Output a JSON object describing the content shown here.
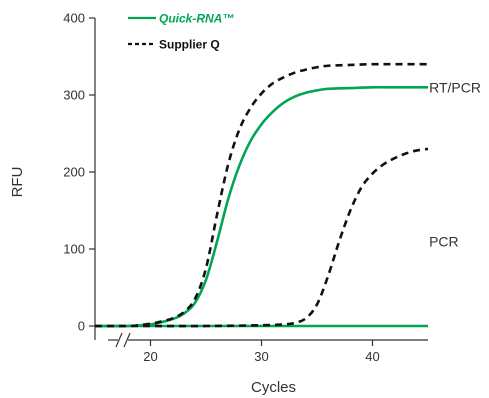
{
  "chart_data": {
    "type": "line",
    "title": "",
    "xlabel": "Cycles",
    "ylabel": "RFU",
    "xlim": [
      15,
      45
    ],
    "ylim": [
      0,
      400
    ],
    "x_ticks": [
      20,
      30,
      40
    ],
    "y_ticks": [
      0,
      100,
      200,
      300,
      400
    ],
    "axis_break": true,
    "grid": false,
    "legend": {
      "placement": "top-left",
      "entries": [
        {
          "label": "Quick-RNA™",
          "color": "#00A651",
          "style": "solid"
        },
        {
          "label": "Supplier Q",
          "color": "#111111",
          "style": "dashed"
        }
      ]
    },
    "annotations": [
      {
        "text": "RT/PCR",
        "x": 46,
        "y": 310
      },
      {
        "text": "PCR",
        "x": 46,
        "y": 110
      }
    ],
    "series": [
      {
        "name": "Quick-RNA™",
        "group": "RT/PCR",
        "color": "#00A651",
        "style": "solid",
        "x": [
          15,
          18,
          20,
          21,
          22,
          23,
          24,
          25,
          26,
          27,
          28,
          29,
          30,
          31,
          32,
          33,
          34,
          35,
          36,
          38,
          40,
          42,
          45
        ],
        "y": [
          0,
          0,
          2,
          5,
          9,
          16,
          30,
          60,
          110,
          165,
          208,
          240,
          262,
          278,
          290,
          298,
          303,
          306,
          308,
          309,
          310,
          310,
          310
        ]
      },
      {
        "name": "Supplier Q",
        "group": "RT/PCR",
        "color": "#111111",
        "style": "dashed",
        "x": [
          15,
          18,
          20,
          21,
          22,
          23,
          24,
          25,
          26,
          27,
          28,
          29,
          30,
          31,
          32,
          33,
          34,
          35,
          36,
          38,
          40,
          42,
          45
        ],
        "y": [
          0,
          0,
          3,
          6,
          10,
          18,
          35,
          75,
          145,
          210,
          255,
          283,
          302,
          315,
          323,
          329,
          333,
          336,
          338,
          339,
          340,
          340,
          340
        ]
      },
      {
        "name": "Quick-RNA™",
        "group": "PCR",
        "color": "#00A651",
        "style": "solid",
        "x": [
          15,
          20,
          25,
          30,
          35,
          40,
          45
        ],
        "y": [
          0,
          0,
          0,
          0,
          0,
          0,
          0
        ]
      },
      {
        "name": "Supplier Q",
        "group": "PCR",
        "color": "#111111",
        "style": "dashed",
        "x": [
          15,
          20,
          25,
          30,
          32,
          33,
          34,
          35,
          36,
          37,
          38,
          39,
          40,
          41,
          42,
          43,
          44,
          45
        ],
        "y": [
          0,
          0,
          0,
          1,
          2,
          4,
          10,
          28,
          65,
          110,
          150,
          180,
          198,
          210,
          218,
          224,
          228,
          230
        ]
      }
    ]
  }
}
